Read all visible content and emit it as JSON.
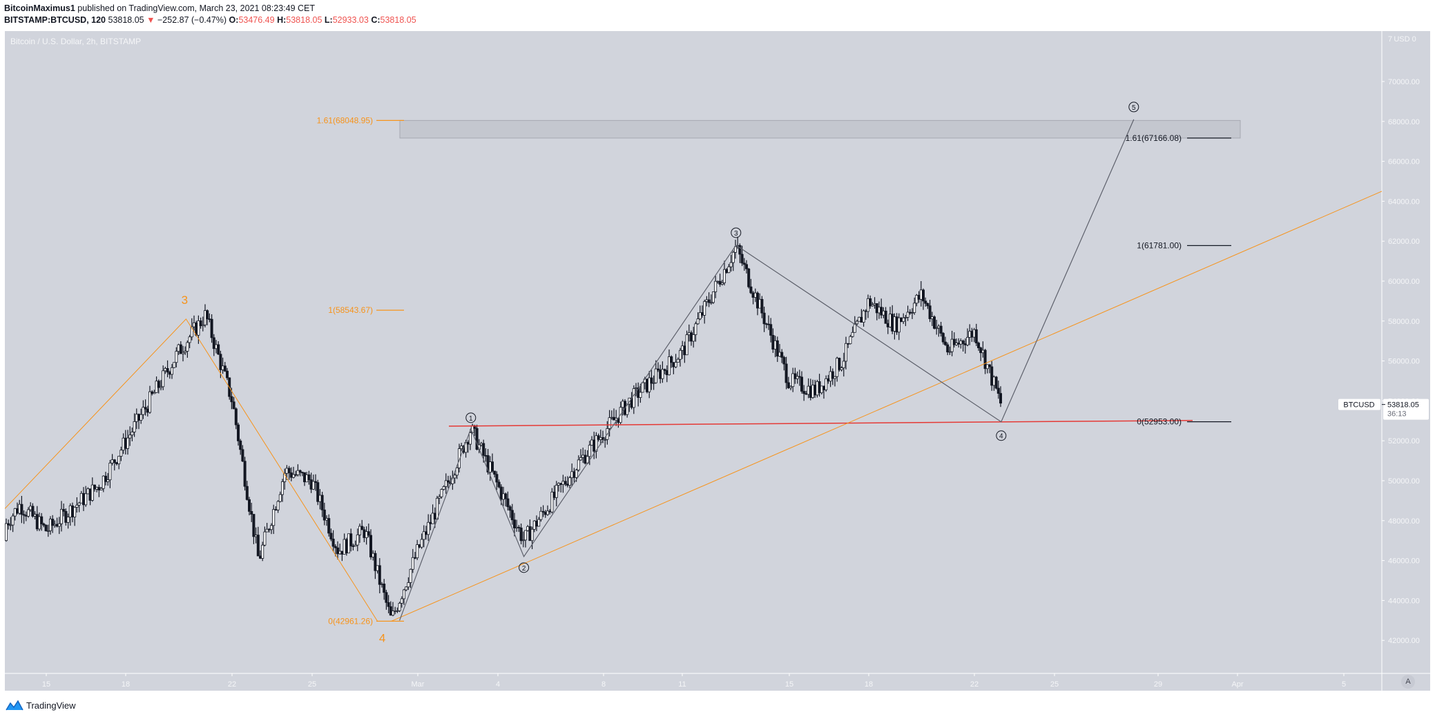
{
  "header": {
    "publisher": "BitcoinMaximus1",
    "published_text": "published on TradingView.com, March 23, 2021 08:23:49 CET",
    "symbol": "BITSTAMP:BTCUSD, 120",
    "last": "53818.05",
    "change_arrow": "▼",
    "change": "−252.87 (−0.47%)",
    "o_label": "O:",
    "o": "53476.49",
    "h_label": "H:",
    "h": "53818.05",
    "l_label": "L:",
    "l": "52933.03",
    "c_label": "C:",
    "c": "53818.05"
  },
  "chart": {
    "title": "Bitcoin / U.S. Dollar, 2h, BITSTAMP",
    "currency": "USD",
    "price_tag_symbol": "BTCUSD",
    "price_tag_value": "53818.05",
    "price_tag_countdown": "36:13",
    "auto_scale_button": "A",
    "logo_text": "TradingView"
  },
  "colors": {
    "background": "#d1d4dc",
    "axis_text": "#f5f6f8",
    "orange": "#f7931a",
    "wave_line": "#5d606b",
    "support": "#e53935",
    "candle_up": "#ffffff",
    "candle_down": "#131722",
    "box_fill": "#c4c7cf",
    "box_border": "#a6a9b2"
  },
  "chart_data": {
    "type": "candlestick",
    "title": "Bitcoin / U.S. Dollar, 2h, BITSTAMP",
    "xlabel": "",
    "ylabel": "USD",
    "ylim": [
      40800,
      72000
    ],
    "y_ticks": [
      42000,
      44000,
      46000,
      48000,
      50000,
      52000,
      54000,
      56000,
      58000,
      60000,
      62000,
      64000,
      66000,
      68000,
      70000
    ],
    "x_ticks": [
      "15",
      "18",
      "22",
      "25",
      "Mar",
      "4",
      "8",
      "11",
      "15",
      "18",
      "22",
      "25",
      "29",
      "Apr",
      "5"
    ],
    "grid": false,
    "price_path": [
      {
        "date": "Feb 13",
        "price": 47000
      },
      {
        "date": "Feb 14",
        "price": 48800
      },
      {
        "date": "Feb 15",
        "price": 47500
      },
      {
        "date": "Feb 17",
        "price": 49800
      },
      {
        "date": "Feb 18",
        "price": 52000
      },
      {
        "date": "Feb 20",
        "price": 56500
      },
      {
        "date": "Feb 21",
        "price": 58300
      },
      {
        "date": "Feb 22",
        "price": 54000
      },
      {
        "date": "Feb 23",
        "price": 46000
      },
      {
        "date": "Feb 24",
        "price": 50500
      },
      {
        "date": "Feb 25",
        "price": 50000
      },
      {
        "date": "Feb 26",
        "price": 46500
      },
      {
        "date": "Feb 27",
        "price": 47500
      },
      {
        "date": "Feb 28",
        "price": 43000
      },
      {
        "date": "Mar 1",
        "price": 46500
      },
      {
        "date": "Mar 2",
        "price": 49500
      },
      {
        "date": "Mar 3",
        "price": 52600
      },
      {
        "date": "Mar 5",
        "price": 47000
      },
      {
        "date": "Mar 7",
        "price": 50800
      },
      {
        "date": "Mar 9",
        "price": 54000
      },
      {
        "date": "Mar 11",
        "price": 56500
      },
      {
        "date": "Mar 13",
        "price": 61700
      },
      {
        "date": "Mar 15",
        "price": 55000
      },
      {
        "date": "Mar 16",
        "price": 54500
      },
      {
        "date": "Mar 17",
        "price": 56000
      },
      {
        "date": "Mar 18",
        "price": 59000
      },
      {
        "date": "Mar 19",
        "price": 57800
      },
      {
        "date": "Mar 20",
        "price": 59300
      },
      {
        "date": "Mar 21",
        "price": 56500
      },
      {
        "date": "Mar 22",
        "price": 57500
      },
      {
        "date": "Mar 23",
        "price": 53818
      }
    ],
    "last_price": 53818.05,
    "annotations": {
      "orange_waves": [
        {
          "label": "3",
          "date": "Feb 21",
          "price": 58100
        },
        {
          "label": "4",
          "date": "Feb 28",
          "price": 42961.26
        }
      ],
      "orange_fib": [
        {
          "label": "1.61(68048.95)",
          "price": 68048.95
        },
        {
          "label": "1(58543.67)",
          "price": 58543.67
        },
        {
          "label": "0(42961.26)",
          "price": 42961.26
        }
      ],
      "count_waves": [
        {
          "label": "①",
          "date": "Mar 3",
          "price": 52600
        },
        {
          "label": "②",
          "date": "Mar 5",
          "price": 46200
        },
        {
          "label": "③",
          "date": "Mar 13",
          "price": 61800
        },
        {
          "label": "④",
          "date": "Mar 23",
          "price": 52950
        },
        {
          "label": "⑤",
          "date": "Mar 28",
          "price": 68100
        }
      ],
      "black_fib": [
        {
          "label": "1.61(67166.08)",
          "price": 67166.08
        },
        {
          "label": "1(61781.00)",
          "price": 61781.0
        },
        {
          "label": "0(52953.00)",
          "price": 52953.0
        }
      ],
      "target_box": {
        "price_top": 68048.95,
        "price_bottom": 67166.08
      },
      "support_line": {
        "price": 52700,
        "color": "#e53935"
      },
      "ascending_trendline": {
        "from": {
          "date": "Feb 28",
          "price": 42961
        },
        "to": {
          "date": "Apr 6",
          "price": 64500
        }
      }
    }
  }
}
